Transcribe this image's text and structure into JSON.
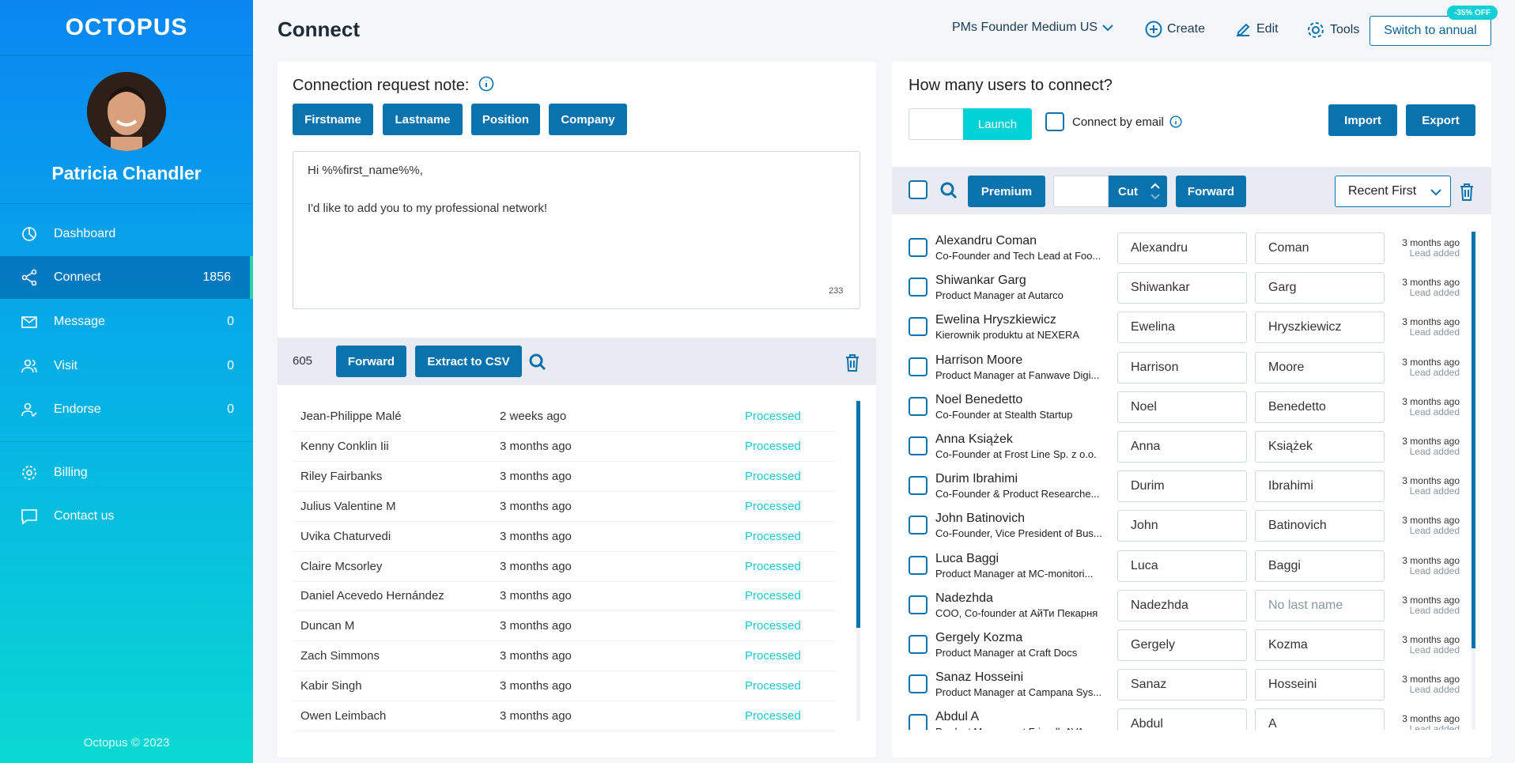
{
  "brand": {
    "logo": "OCTOPUS",
    "footer": "Octopus © 2023"
  },
  "user": {
    "name": "Patricia Chandler"
  },
  "sidebar": {
    "items": [
      {
        "label": "Dashboard",
        "icon": "dashboard-icon",
        "count": ""
      },
      {
        "label": "Connect",
        "icon": "share-icon",
        "count": "1856",
        "active": true
      },
      {
        "label": "Message",
        "icon": "mail-icon",
        "count": "0"
      },
      {
        "label": "Visit",
        "icon": "users-icon",
        "count": "0"
      },
      {
        "label": "Endorse",
        "icon": "user-check-icon",
        "count": "0"
      }
    ],
    "bottom": [
      {
        "label": "Billing",
        "icon": "gear-icon"
      },
      {
        "label": "Contact us",
        "icon": "chat-icon"
      }
    ]
  },
  "header": {
    "title": "Connect",
    "campaign": "PMs Founder Medium US",
    "create": "Create",
    "edit": "Edit",
    "tools": "Tools",
    "switch": "Switch to annual",
    "badge": "-35% OFF"
  },
  "note": {
    "label": "Connection request note:",
    "tags": [
      "Firstname",
      "Lastname",
      "Position",
      "Company"
    ],
    "text": "Hi %%first_name%%,\n\nI'd like to add you to my professional network!",
    "count": "233"
  },
  "processed": {
    "count": "605",
    "forward": "Forward",
    "extract": "Extract to CSV",
    "rows": [
      [
        "Jean-Philippe Malé",
        "2 weeks ago",
        "Processed"
      ],
      [
        "Kenny Conklin Iii",
        "3 months ago",
        "Processed"
      ],
      [
        "Riley Fairbanks",
        "3 months ago",
        "Processed"
      ],
      [
        "Julius Valentine M",
        "3 months ago",
        "Processed"
      ],
      [
        "Uvika Chaturvedi",
        "3 months ago",
        "Processed"
      ],
      [
        "Claire Mcsorley",
        "3 months ago",
        "Processed"
      ],
      [
        "Daniel Acevedo Hernández",
        "3 months ago",
        "Processed"
      ],
      [
        "Duncan M",
        "3 months ago",
        "Processed"
      ],
      [
        "Zach Simmons",
        "3 months ago",
        "Processed"
      ],
      [
        "Kabir Singh",
        "3 months ago",
        "Processed"
      ],
      [
        "Owen Leimbach",
        "3 months ago",
        "Processed"
      ]
    ]
  },
  "connect": {
    "question": "How many users to connect?",
    "count_value": "",
    "launch": "Launch",
    "by_email": "Connect by email",
    "import": "Import",
    "export": "Export",
    "premium": "Premium",
    "cut_value": "",
    "cut": "Cut",
    "forward": "Forward",
    "sort": "Recent First",
    "rows": [
      {
        "name": "Alexandru Coman",
        "position": "Co-Founder and Tech Lead at Foo...",
        "first": "Alexandru",
        "last": "Coman",
        "time": "3 months ago",
        "status": "Lead added"
      },
      {
        "name": "Shiwankar Garg",
        "position": "Product Manager at Autarco",
        "first": "Shiwankar",
        "last": "Garg",
        "time": "3 months ago",
        "status": "Lead added"
      },
      {
        "name": "Ewelina Hryszkiewicz",
        "position": "Kierownik produktu at NEXERA",
        "first": "Ewelina",
        "last": "Hryszkiewicz",
        "time": "3 months ago",
        "status": "Lead added"
      },
      {
        "name": "Harrison Moore",
        "position": "Product Manager at Fanwave Digi...",
        "first": "Harrison",
        "last": "Moore",
        "time": "3 months ago",
        "status": "Lead added"
      },
      {
        "name": "Noel Benedetto",
        "position": "Co-Founder at Stealth Startup",
        "first": "Noel",
        "last": "Benedetto",
        "time": "3 months ago",
        "status": "Lead added"
      },
      {
        "name": "Anna Książek",
        "position": "Co-Founder at Frost Line Sp. z o.o.",
        "first": "Anna",
        "last": "Książek",
        "time": "3 months ago",
        "status": "Lead added"
      },
      {
        "name": "Durim Ibrahimi",
        "position": "Co-Founder & Product Researche...",
        "first": "Durim",
        "last": "Ibrahimi",
        "time": "3 months ago",
        "status": "Lead added"
      },
      {
        "name": "John Batinovich",
        "position": "Co-Founder, Vice President of Bus...",
        "first": "John",
        "last": "Batinovich",
        "time": "3 months ago",
        "status": "Lead added"
      },
      {
        "name": "Luca Baggi",
        "position": "Product Manager at MC-monitori...",
        "first": "Luca",
        "last": "Baggi",
        "time": "3 months ago",
        "status": "Lead added"
      },
      {
        "name": "Nadezhda",
        "position": "COO, Co-founder at АйТи Пекарня",
        "first": "Nadezhda",
        "last": "",
        "last_placeholder": "No last name",
        "time": "3 months ago",
        "status": "Lead added"
      },
      {
        "name": "Gergely Kozma",
        "position": "Product Manager at Craft Docs",
        "first": "Gergely",
        "last": "Kozma",
        "time": "3 months ago",
        "status": "Lead added"
      },
      {
        "name": "Sanaz Hosseini",
        "position": "Product Manager at Campana Sys...",
        "first": "Sanaz",
        "last": "Hosseini",
        "time": "3 months ago",
        "status": "Lead added"
      },
      {
        "name": "Abdul A",
        "position": "Product Manager at FriendlyAVA",
        "first": "Abdul",
        "last": "A",
        "time": "3 months ago",
        "status": "Lead added"
      }
    ]
  },
  "colors": {
    "primary": "#0a72ad",
    "accent": "#00d2d8",
    "processed": "#1ec8d0"
  }
}
